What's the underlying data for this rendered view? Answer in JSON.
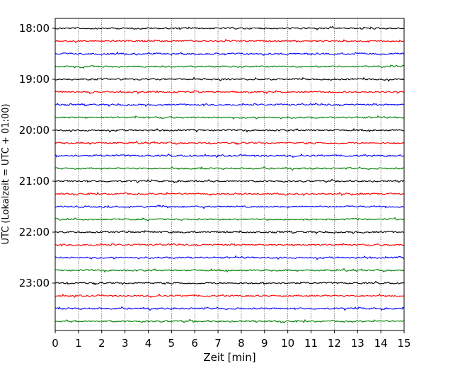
{
  "chart_data": {
    "type": "line",
    "title": "",
    "xlabel": "Zeit  [min]",
    "ylabel": "UTC (Lokalzeit = UTC + 01:00)",
    "xlim": [
      0,
      15
    ],
    "x_ticks": [
      0,
      1,
      2,
      3,
      4,
      5,
      6,
      7,
      8,
      9,
      10,
      11,
      12,
      13,
      14,
      15
    ],
    "x_tick_labels": [
      "0",
      "1",
      "2",
      "3",
      "4",
      "5",
      "6",
      "7",
      "8",
      "9",
      "10",
      "11",
      "12",
      "13",
      "14",
      "15"
    ],
    "y_tick_labels": [
      "18:00",
      "19:00",
      "20:00",
      "21:00",
      "22:00",
      "23:00"
    ],
    "grid": {
      "x": true,
      "y": false,
      "style": "dotted"
    },
    "trace_colors": [
      "#000000",
      "#ff0000",
      "#0000ff",
      "#008000"
    ],
    "trace_start_times": [
      "18:00",
      "18:15",
      "18:30",
      "18:45",
      "19:00",
      "19:15",
      "19:30",
      "19:45",
      "20:00",
      "20:15",
      "20:30",
      "20:45",
      "21:00",
      "21:15",
      "21:30",
      "21:45",
      "22:00",
      "22:15",
      "22:30",
      "22:45",
      "23:00",
      "23:15",
      "23:30",
      "23:45"
    ],
    "trace_minutes_per_row": 15
  }
}
